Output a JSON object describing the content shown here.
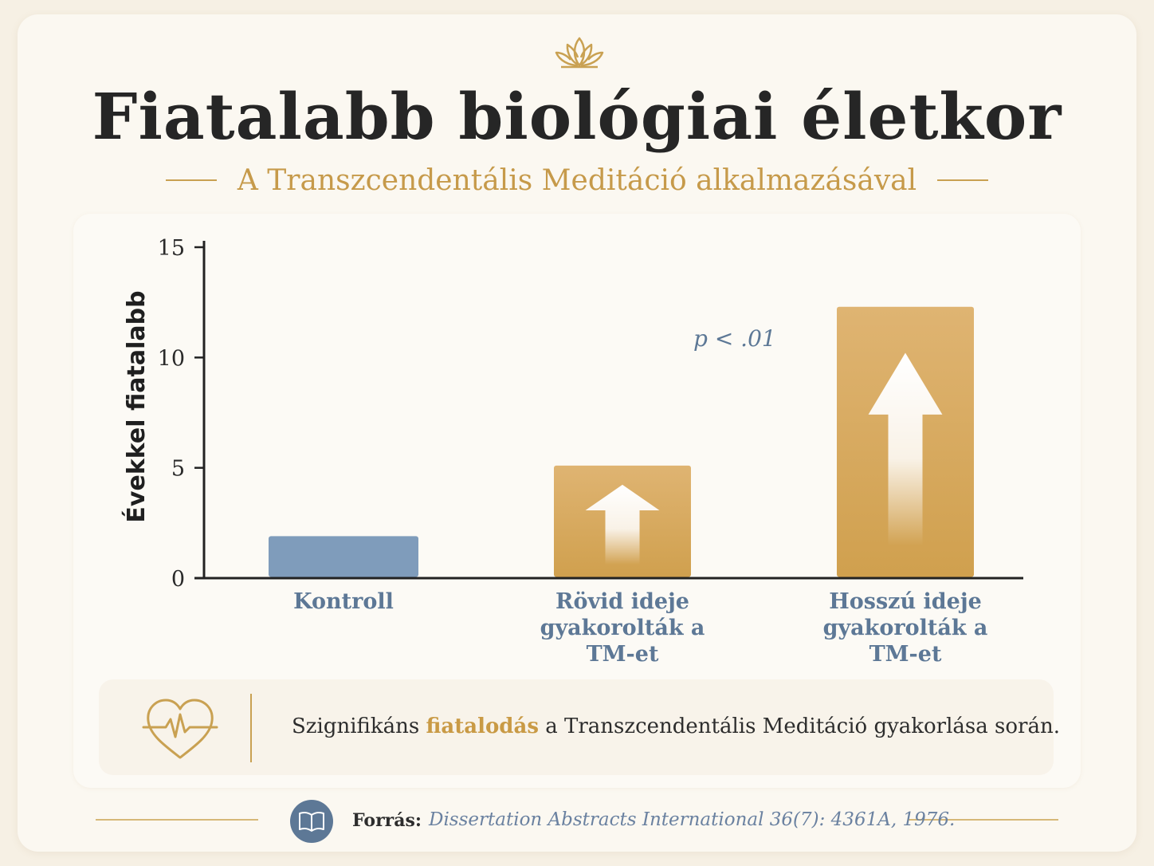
{
  "header": {
    "title": "Fiatalabb biológiai életkor",
    "subtitle": "A Transzcendentális Meditáció alkalmazásával",
    "icon": "lotus-icon"
  },
  "chart_data": {
    "type": "bar",
    "categories": [
      "Kontroll",
      "Rövid ideje gyakorolták a TM-et",
      "Hosszú ideje gyakorolták a TM-et"
    ],
    "category_lines": [
      [
        "Kontroll"
      ],
      [
        "Rövid ideje",
        "gyakorolták a",
        "TM-et"
      ],
      [
        "Hosszú ideje",
        "gyakorolták a",
        "TM-et"
      ]
    ],
    "values": [
      1.9,
      5.1,
      12.3
    ],
    "colors": [
      "#7f9cbb",
      "#d4a65c",
      "#d4a65c"
    ],
    "ylabel": "Évekkel fiatalabb",
    "xlabel": "",
    "ylim": [
      0,
      15
    ],
    "yticks": [
      0,
      5,
      10,
      15
    ],
    "annotation": "p < .01",
    "bar_arrows": [
      false,
      true,
      true
    ],
    "grid": false
  },
  "note": {
    "icon": "heart-pulse-icon",
    "prefix": "Szignifikáns ",
    "highlight": "fiatalodás",
    "suffix": " a Transzcendentális Meditáció gyakorlása során."
  },
  "footer": {
    "icon": "book-icon",
    "label": "Forrás:",
    "source": "Dissertation Abstracts International 36(7): 4361A, 1976."
  }
}
